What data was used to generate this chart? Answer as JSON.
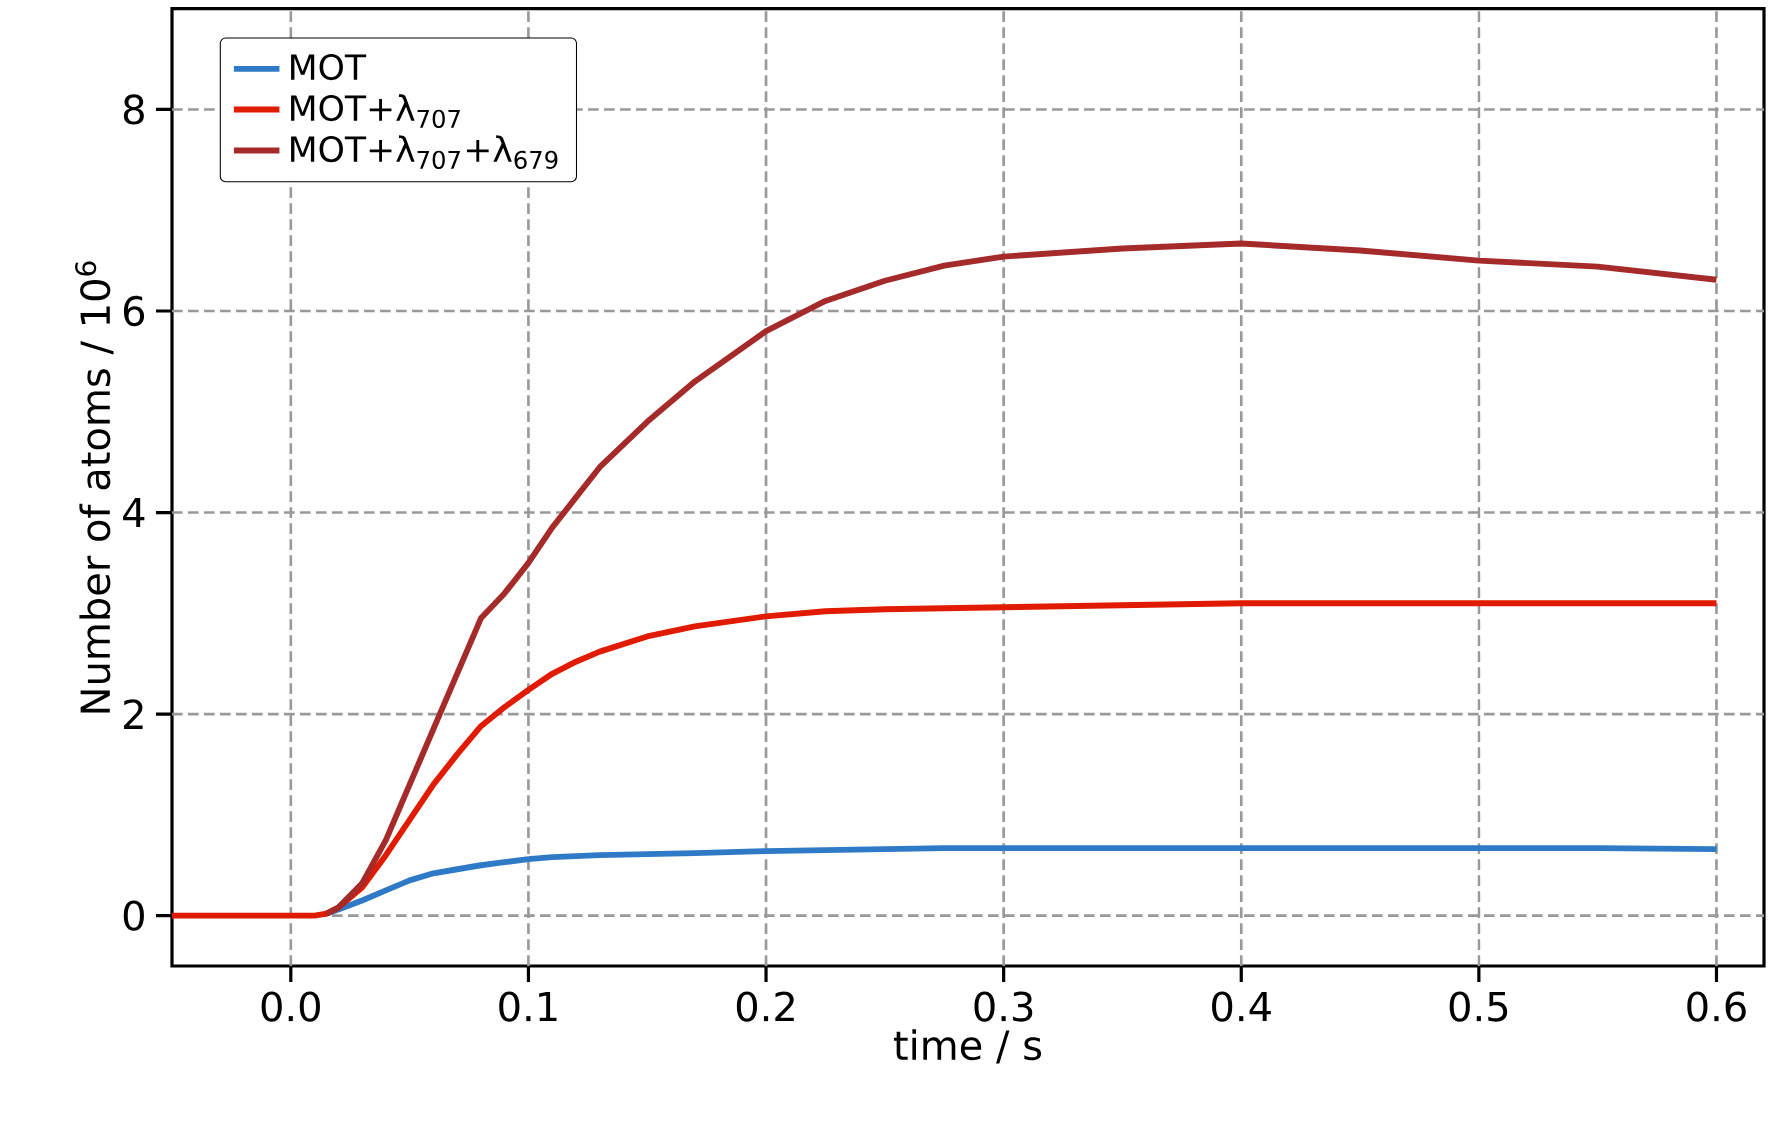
{
  "chart_data": {
    "type": "line",
    "xlabel": "time / s",
    "ylabel": "Number of atoms / 10$^{6}$",
    "xlim": [
      -0.05,
      0.62
    ],
    "ylim": [
      -0.5,
      9
    ],
    "xticks": [
      {
        "value": 0,
        "label": "0.0"
      },
      0.1,
      0.2,
      0.3,
      0.4,
      0.5,
      0.6
    ],
    "yticks": [
      0,
      2,
      4,
      6,
      8
    ],
    "grid": true,
    "legend": "top left",
    "marker": "none",
    "line_style": "solid",
    "x": [
      -0.05,
      -0.03,
      -0.01,
      0.0,
      0.01,
      0.015,
      0.02,
      0.03,
      0.04,
      0.05,
      0.06,
      0.07,
      0.08,
      0.09,
      0.1,
      0.11,
      0.12,
      0.13,
      0.15,
      0.17,
      0.2,
      0.225,
      0.25,
      0.275,
      0.3,
      0.35,
      0.4,
      0.45,
      0.5,
      0.55,
      0.6
    ],
    "series": [
      {
        "name": "MOT",
        "color": "#2f7ac7",
        "values": [
          null,
          null,
          null,
          null,
          null,
          0.02,
          0.06,
          0.15,
          0.25,
          0.35,
          0.42,
          0.46,
          0.5,
          0.53,
          0.56,
          0.58,
          0.59,
          0.6,
          0.61,
          0.62,
          0.64,
          0.65,
          0.66,
          0.67,
          0.67,
          0.67,
          0.67,
          0.67,
          0.67,
          0.67,
          0.66
        ]
      },
      {
        "name": "MOT+λ$_{707}$",
        "color": "#e01b00",
        "values": [
          0,
          0,
          0,
          0,
          0,
          0.02,
          0.08,
          0.28,
          0.6,
          0.95,
          1.3,
          1.6,
          1.88,
          2.07,
          2.24,
          2.4,
          2.52,
          2.62,
          2.77,
          2.87,
          2.97,
          3.02,
          3.04,
          3.05,
          3.06,
          3.08,
          3.1,
          3.1,
          3.1,
          3.1,
          3.1
        ]
      },
      {
        "name": "MOT+λ$_{707}$+λ$_{679}$",
        "color": "#a52a2a",
        "values": [
          null,
          null,
          null,
          null,
          null,
          0.02,
          0.08,
          0.32,
          0.75,
          1.3,
          1.85,
          2.4,
          2.95,
          3.2,
          3.5,
          3.85,
          4.15,
          4.45,
          4.9,
          5.3,
          5.8,
          6.1,
          6.3,
          6.45,
          6.54,
          6.62,
          6.67,
          6.6,
          6.5,
          6.44,
          6.31
        ]
      }
    ]
  }
}
